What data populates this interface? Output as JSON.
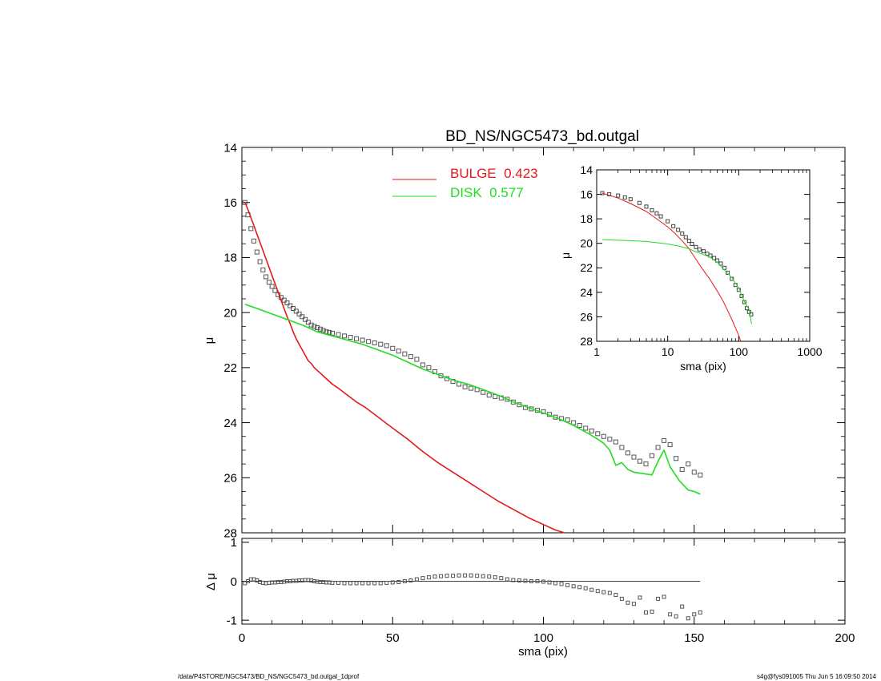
{
  "footer": {
    "path": "/data/P4STORE/NGC5473/BD_NS/NGC5473_bd.outgal_1dprof",
    "stamp": "s4g@fys091005  Thu Jun  5 16:09:50 2014"
  },
  "chart_data": [
    {
      "id": "main",
      "type": "line",
      "title": "BD_NS/NGC5473_bd.outgal",
      "xlabel": "",
      "ylabel": "μ",
      "xlim": [
        0,
        200
      ],
      "ylim": [
        28,
        14
      ],
      "x_ticks": [
        0,
        50,
        100,
        150,
        200
      ],
      "y_ticks": [
        14,
        16,
        18,
        20,
        22,
        24,
        26,
        28
      ],
      "x_tick_labels_shown": false,
      "legend": {
        "placement": "top-center",
        "entries": [
          {
            "label": "BULGE  0.423",
            "color": "#e31a1c"
          },
          {
            "label": "DISK  0.577",
            "color": "#22dd22"
          }
        ]
      },
      "series": [
        {
          "name": "BULGE  0.423",
          "color": "#e31a1c",
          "x": [
            1,
            2,
            3,
            4,
            5,
            6,
            7,
            8,
            9,
            10,
            11,
            12,
            13,
            14,
            15,
            16,
            17,
            18,
            19,
            20,
            21,
            22,
            23,
            24,
            25,
            26,
            28,
            30,
            32,
            35,
            38,
            41,
            44,
            47,
            50,
            55,
            60,
            65,
            70,
            75,
            80,
            85,
            90,
            95,
            100,
            104,
            107
          ],
          "y": [
            16.0,
            16.25,
            16.55,
            16.85,
            17.15,
            17.45,
            17.75,
            18.05,
            18.35,
            18.65,
            18.95,
            19.25,
            19.55,
            19.85,
            20.15,
            20.4,
            20.7,
            20.95,
            21.15,
            21.35,
            21.55,
            21.75,
            21.85,
            22.0,
            22.1,
            22.2,
            22.4,
            22.6,
            22.75,
            23.0,
            23.25,
            23.45,
            23.7,
            23.95,
            24.2,
            24.6,
            25.05,
            25.45,
            25.8,
            26.15,
            26.5,
            26.85,
            27.15,
            27.45,
            27.7,
            27.9,
            28.0
          ]
        },
        {
          "name": "DISK  0.577",
          "color": "#22dd22",
          "x": [
            1,
            5,
            10,
            15,
            20,
            25,
            30,
            35,
            40,
            45,
            50,
            55,
            60,
            65,
            70,
            75,
            80,
            85,
            90,
            95,
            100,
            105,
            110,
            115,
            118,
            120,
            122,
            124,
            126,
            128,
            130,
            133,
            136,
            138,
            140,
            142,
            145,
            148,
            150,
            152
          ],
          "y": [
            19.7,
            19.85,
            20.05,
            20.25,
            20.45,
            20.7,
            20.85,
            21.0,
            21.15,
            21.35,
            21.55,
            21.8,
            22.05,
            22.25,
            22.45,
            22.6,
            22.8,
            23.0,
            23.25,
            23.45,
            23.65,
            23.85,
            24.1,
            24.4,
            24.6,
            24.75,
            25.0,
            25.55,
            25.45,
            25.7,
            25.8,
            25.85,
            25.9,
            25.4,
            25.0,
            25.6,
            26.1,
            26.45,
            26.5,
            26.6
          ]
        },
        {
          "name": "",
          "color": "#555555",
          "style": "squares",
          "x": [
            1,
            2,
            3,
            4,
            5,
            6,
            7,
            8,
            9,
            10,
            11,
            12,
            13,
            14,
            15,
            16,
            17,
            18,
            19,
            20,
            21,
            22,
            23,
            24,
            25,
            26,
            27,
            28,
            29,
            30,
            32,
            34,
            36,
            38,
            40,
            42,
            44,
            46,
            48,
            50,
            52,
            54,
            56,
            58,
            60,
            62,
            64,
            66,
            68,
            70,
            72,
            74,
            76,
            78,
            80,
            82,
            84,
            86,
            88,
            90,
            92,
            94,
            96,
            98,
            100,
            102,
            104,
            106,
            108,
            110,
            112,
            114,
            116,
            118,
            120,
            122,
            124,
            126,
            128,
            130,
            132,
            134,
            136,
            138,
            140,
            142,
            144,
            146,
            148,
            150,
            152
          ],
          "y": [
            16.0,
            16.45,
            16.95,
            17.4,
            17.8,
            18.15,
            18.45,
            18.7,
            18.9,
            19.05,
            19.2,
            19.35,
            19.45,
            19.55,
            19.65,
            19.75,
            19.85,
            19.95,
            20.05,
            20.15,
            20.25,
            20.35,
            20.45,
            20.5,
            20.55,
            20.6,
            20.65,
            20.7,
            20.72,
            20.75,
            20.8,
            20.85,
            20.9,
            20.95,
            21.0,
            21.05,
            21.1,
            21.15,
            21.2,
            21.3,
            21.4,
            21.5,
            21.6,
            21.7,
            21.9,
            22.0,
            22.15,
            22.3,
            22.4,
            22.5,
            22.6,
            22.7,
            22.75,
            22.8,
            22.9,
            23.0,
            23.05,
            23.1,
            23.15,
            23.25,
            23.35,
            23.45,
            23.5,
            23.55,
            23.6,
            23.7,
            23.8,
            23.85,
            23.9,
            24.0,
            24.1,
            24.2,
            24.3,
            24.4,
            24.5,
            24.6,
            24.7,
            24.9,
            25.1,
            25.25,
            25.4,
            25.5,
            25.2,
            24.9,
            24.65,
            24.8,
            25.3,
            25.7,
            25.5,
            25.8,
            25.9
          ]
        }
      ]
    },
    {
      "id": "residual",
      "type": "scatter",
      "xlabel": "sma (pix)",
      "ylabel": "Δ μ",
      "xlim": [
        0,
        200
      ],
      "ylim": [
        -1.1,
        1.1
      ],
      "x_ticks": [
        0,
        50,
        100,
        150,
        200
      ],
      "x_tick_labels": [
        "0",
        "50",
        "100",
        "150",
        "200"
      ],
      "y_ticks": [
        -1,
        0,
        1
      ],
      "y_tick_labels": [
        "-1",
        "0",
        "1"
      ],
      "zero_line_x": [
        0,
        152
      ],
      "series": [
        {
          "name": "",
          "color": "#555555",
          "style": "squares",
          "x": [
            1,
            2,
            3,
            4,
            5,
            6,
            7,
            8,
            9,
            10,
            11,
            12,
            13,
            14,
            15,
            16,
            17,
            18,
            19,
            20,
            21,
            22,
            23,
            24,
            25,
            26,
            27,
            28,
            29,
            30,
            32,
            34,
            36,
            38,
            40,
            42,
            44,
            46,
            48,
            50,
            52,
            54,
            56,
            58,
            60,
            62,
            64,
            66,
            68,
            70,
            72,
            74,
            76,
            78,
            80,
            82,
            84,
            86,
            88,
            90,
            92,
            94,
            96,
            98,
            100,
            102,
            104,
            106,
            108,
            110,
            112,
            114,
            116,
            118,
            120,
            122,
            124,
            126,
            128,
            130,
            132,
            134,
            136,
            138,
            140,
            142,
            144,
            146,
            148,
            150,
            152
          ],
          "y": [
            -0.05,
            0.0,
            0.05,
            0.05,
            0.02,
            -0.02,
            -0.04,
            -0.05,
            -0.04,
            -0.03,
            -0.03,
            -0.02,
            -0.02,
            -0.01,
            0.0,
            0.0,
            0.01,
            0.01,
            0.02,
            0.02,
            0.03,
            0.03,
            0.02,
            0.0,
            -0.01,
            -0.02,
            -0.02,
            -0.03,
            -0.03,
            -0.04,
            -0.04,
            -0.05,
            -0.05,
            -0.05,
            -0.05,
            -0.05,
            -0.05,
            -0.05,
            -0.04,
            -0.03,
            -0.02,
            0.0,
            0.02,
            0.05,
            0.08,
            0.1,
            0.12,
            0.13,
            0.14,
            0.14,
            0.15,
            0.15,
            0.15,
            0.14,
            0.13,
            0.12,
            0.1,
            0.08,
            0.05,
            0.03,
            0.02,
            0.01,
            0.0,
            0.0,
            -0.01,
            -0.03,
            -0.05,
            -0.07,
            -0.1,
            -0.13,
            -0.15,
            -0.18,
            -0.22,
            -0.25,
            -0.28,
            -0.3,
            -0.35,
            -0.45,
            -0.55,
            -0.58,
            -0.42,
            -0.8,
            -0.78,
            -0.45,
            -0.4,
            -0.85,
            -0.9,
            -0.65,
            -0.95,
            -0.85,
            -0.8
          ]
        }
      ]
    },
    {
      "id": "inset",
      "type": "line",
      "xlabel": "sma (pix)",
      "ylabel": "μ",
      "x_scale": "log",
      "xlim": [
        1,
        1000
      ],
      "ylim": [
        28,
        14
      ],
      "x_ticks": [
        1,
        10,
        100,
        1000
      ],
      "x_tick_labels": [
        "1",
        "10",
        "100",
        "1000"
      ],
      "y_ticks": [
        14,
        16,
        18,
        20,
        22,
        24,
        26,
        28
      ],
      "y_tick_labels": [
        "14",
        "16",
        "18",
        "20",
        "22",
        "24",
        "26",
        "28"
      ],
      "series": [
        {
          "name": "BULGE  0.423",
          "color": "#e31a1c",
          "x": [
            1.2,
            2,
            3,
            5,
            7,
            10,
            13,
            16,
            20,
            25,
            30,
            40,
            50,
            60,
            70,
            80,
            90,
            100,
            107
          ],
          "y": [
            15.9,
            16.3,
            16.75,
            17.4,
            18.0,
            18.65,
            19.25,
            19.8,
            20.45,
            21.3,
            22.0,
            23.0,
            23.9,
            24.7,
            25.5,
            26.2,
            26.9,
            27.5,
            28.0
          ]
        },
        {
          "name": "DISK  0.577",
          "color": "#22dd22",
          "x": [
            1.2,
            2,
            3,
            5,
            7,
            10,
            15,
            20,
            25,
            30,
            40,
            50,
            60,
            70,
            80,
            90,
            100,
            120,
            140,
            152
          ],
          "y": [
            19.7,
            19.75,
            19.78,
            19.85,
            19.95,
            20.05,
            20.25,
            20.45,
            20.7,
            20.85,
            21.15,
            21.55,
            22.05,
            22.45,
            22.8,
            23.25,
            23.65,
            24.75,
            25.4,
            26.6
          ]
        },
        {
          "name": "",
          "color": "#444444",
          "style": "squares",
          "x": [
            1.2,
            1.5,
            2,
            2.5,
            3,
            4,
            5,
            6,
            7,
            8,
            10,
            12,
            14,
            16,
            18,
            20,
            22,
            25,
            28,
            32,
            36,
            40,
            45,
            50,
            56,
            63,
            70,
            80,
            90,
            100,
            110,
            120,
            130,
            140,
            150
          ],
          "y": [
            15.9,
            16.0,
            16.1,
            16.25,
            16.4,
            16.7,
            17.0,
            17.3,
            17.55,
            17.8,
            18.2,
            18.6,
            18.9,
            19.2,
            19.5,
            19.8,
            20.05,
            20.3,
            20.5,
            20.65,
            20.85,
            21.0,
            21.2,
            21.4,
            21.65,
            22.0,
            22.4,
            22.9,
            23.4,
            23.8,
            24.3,
            24.8,
            25.3,
            25.6,
            25.8
          ]
        }
      ]
    }
  ]
}
